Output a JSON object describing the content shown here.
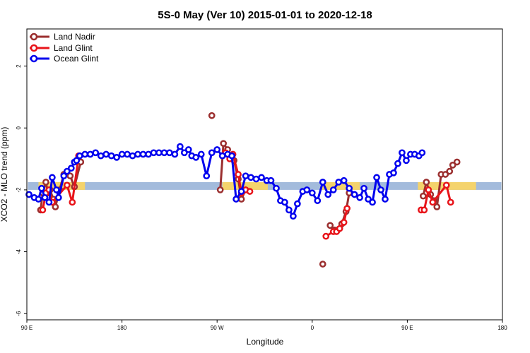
{
  "chart_data": {
    "type": "line",
    "title": "5S-0 May (Ver 10)   2015-01-01 to 2020-12-18",
    "xlabel": "Longitude",
    "ylabel": "XCO2 - MLO trend (ppm)",
    "xlim": [
      90,
      540
    ],
    "ylim": [
      -6.2,
      3.2
    ],
    "x_ticks": [
      {
        "value": 90,
        "label": "90 E"
      },
      {
        "value": 180,
        "label": "180"
      },
      {
        "value": 270,
        "label": "90 W"
      },
      {
        "value": 360,
        "label": "0"
      },
      {
        "value": 450,
        "label": "90 E"
      },
      {
        "value": 540,
        "label": "180"
      }
    ],
    "y_ticks": [
      {
        "value": 2,
        "label": "2"
      },
      {
        "value": 0,
        "label": "0"
      },
      {
        "value": -2,
        "label": "-2"
      },
      {
        "value": -4,
        "label": "-4"
      },
      {
        "value": -6,
        "label": "-6"
      }
    ],
    "band": {
      "y_low": -2.0,
      "y_high": -1.75,
      "ocean_color": "#a3bbdc",
      "land_color": "#f4d36c",
      "land_ranges": [
        [
          101,
          145
        ],
        [
          275,
          318
        ],
        [
          368,
          405
        ],
        [
          460,
          515
        ]
      ]
    },
    "legend_position": "top-left",
    "grid": false,
    "series": [
      {
        "name": "Land Nadir",
        "color": "#9b2f2f",
        "segments": [
          [
            [
              103,
              -2.65
            ],
            [
              105,
              -2.1
            ],
            [
              108,
              -1.75
            ],
            [
              110,
              -2.1
            ],
            [
              112,
              -2.0
            ],
            [
              115,
              -2.3
            ],
            [
              117,
              -2.55
            ],
            [
              121,
              -2.0
            ],
            [
              125,
              -1.5
            ],
            [
              131,
              -1.55
            ],
            [
              135,
              -1.9
            ],
            [
              141,
              -1.1
            ]
          ],
          [
            [
              265,
              0.4
            ]
          ],
          [
            [
              273,
              -2.0
            ],
            [
              276,
              -0.5
            ],
            [
              280,
              -0.7
            ],
            [
              283,
              -0.95
            ],
            [
              286,
              -1.05
            ],
            [
              290,
              -1.65
            ],
            [
              293,
              -2.3
            ],
            [
              297,
              -2.0
            ]
          ],
          [
            [
              370,
              -4.4
            ]
          ],
          [
            [
              377,
              -3.15
            ],
            [
              381,
              -3.3
            ],
            [
              384,
              -3.3
            ],
            [
              388,
              -3.1
            ],
            [
              392,
              -2.7
            ],
            [
              395,
              -2.1
            ]
          ],
          [
            [
              465,
              -2.2
            ],
            [
              468,
              -1.75
            ],
            [
              472,
              -2.15
            ],
            [
              475,
              -2.35
            ],
            [
              478,
              -2.55
            ],
            [
              482,
              -1.5
            ],
            [
              486,
              -1.5
            ],
            [
              490,
              -1.4
            ],
            [
              493,
              -1.2
            ],
            [
              497,
              -1.1
            ]
          ]
        ]
      },
      {
        "name": "Land Glint",
        "color": "#e8141a",
        "segments": [
          [
            [
              105,
              -2.65
            ],
            [
              108,
              -2.1
            ],
            [
              111,
              -2.0
            ],
            [
              114,
              -2.4
            ],
            [
              128,
              -1.85
            ],
            [
              133,
              -2.4
            ],
            [
              139,
              -0.9
            ]
          ],
          [
            [
              275,
              -0.9
            ],
            [
              278,
              -0.8
            ],
            [
              282,
              -1.0
            ],
            [
              285,
              -0.85
            ],
            [
              290,
              -1.5
            ],
            [
              293,
              -2.1
            ],
            [
              297,
              -2.0
            ],
            [
              301,
              -2.05
            ]
          ],
          [
            [
              373,
              -3.5
            ],
            [
              380,
              -3.35
            ],
            [
              383,
              -3.35
            ],
            [
              386,
              -3.25
            ],
            [
              390,
              -3.05
            ],
            [
              393,
              -2.6
            ]
          ],
          [
            [
              463,
              -2.65
            ],
            [
              466,
              -2.65
            ],
            [
              470,
              -2.0
            ],
            [
              474,
              -2.4
            ],
            [
              487,
              -1.85
            ],
            [
              491,
              -2.4
            ]
          ]
        ]
      },
      {
        "name": "Ocean Glint",
        "color": "#0000ee",
        "segments": [
          [
            [
              92,
              -2.15
            ],
            [
              97,
              -2.25
            ],
            [
              101,
              -2.3
            ],
            [
              104,
              -1.95
            ],
            [
              107,
              -2.25
            ],
            [
              111,
              -2.4
            ],
            [
              114,
              -1.6
            ],
            [
              118,
              -2.0
            ],
            [
              120,
              -2.25
            ],
            [
              125,
              -1.55
            ],
            [
              128,
              -1.4
            ],
            [
              132,
              -1.3
            ],
            [
              135,
              -1.1
            ],
            [
              137,
              -1.05
            ],
            [
              140,
              -0.9
            ],
            [
              145,
              -0.85
            ],
            [
              150,
              -0.85
            ],
            [
              155,
              -0.8
            ],
            [
              160,
              -0.9
            ],
            [
              165,
              -0.85
            ],
            [
              170,
              -0.9
            ],
            [
              175,
              -0.95
            ],
            [
              180,
              -0.85
            ],
            [
              185,
              -0.85
            ],
            [
              190,
              -0.9
            ],
            [
              195,
              -0.85
            ],
            [
              200,
              -0.85
            ],
            [
              205,
              -0.85
            ],
            [
              210,
              -0.8
            ],
            [
              215,
              -0.8
            ],
            [
              220,
              -0.8
            ],
            [
              225,
              -0.8
            ],
            [
              230,
              -0.85
            ],
            [
              235,
              -0.6
            ],
            [
              239,
              -0.8
            ],
            [
              243,
              -0.7
            ],
            [
              246,
              -0.9
            ],
            [
              250,
              -0.95
            ],
            [
              255,
              -0.85
            ],
            [
              260,
              -1.55
            ],
            [
              265,
              -0.8
            ],
            [
              270,
              -0.7
            ],
            [
              275,
              -0.9
            ],
            [
              280,
              -0.85
            ],
            [
              284,
              -0.9
            ],
            [
              288,
              -2.3
            ],
            [
              293,
              -2.05
            ],
            [
              297,
              -1.55
            ],
            [
              302,
              -1.6
            ],
            [
              307,
              -1.65
            ],
            [
              312,
              -1.6
            ],
            [
              317,
              -1.7
            ],
            [
              321,
              -1.7
            ],
            [
              326,
              -1.95
            ],
            [
              330,
              -2.35
            ],
            [
              334,
              -2.4
            ],
            [
              338,
              -2.65
            ],
            [
              342,
              -2.85
            ],
            [
              346,
              -2.45
            ],
            [
              351,
              -2.05
            ],
            [
              355,
              -2.0
            ],
            [
              360,
              -2.1
            ],
            [
              365,
              -2.35
            ],
            [
              370,
              -1.75
            ],
            [
              375,
              -2.15
            ],
            [
              380,
              -2.0
            ],
            [
              385,
              -1.75
            ],
            [
              390,
              -1.7
            ],
            [
              395,
              -1.95
            ],
            [
              400,
              -2.15
            ],
            [
              405,
              -2.25
            ],
            [
              409,
              -1.95
            ],
            [
              413,
              -2.3
            ],
            [
              417,
              -2.4
            ],
            [
              421,
              -1.6
            ],
            [
              425,
              -2.0
            ],
            [
              429,
              -2.3
            ],
            [
              433,
              -1.5
            ],
            [
              437,
              -1.45
            ],
            [
              441,
              -1.15
            ],
            [
              445,
              -0.8
            ],
            [
              449,
              -1.05
            ],
            [
              453,
              -0.85
            ],
            [
              457,
              -0.85
            ],
            [
              461,
              -0.9
            ],
            [
              464,
              -0.8
            ]
          ]
        ]
      }
    ]
  }
}
